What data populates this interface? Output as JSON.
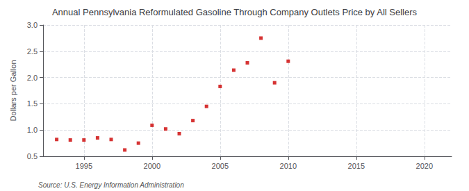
{
  "chart_data": {
    "type": "scatter",
    "title": "Annual Pennsylvania Reformulated Gasoline Through Company Outlets Price by All Sellers",
    "ylabel": "Dollars per Gallon",
    "annotations": [
      "Source: U.S. Energy Information Administration"
    ],
    "x": [
      1993,
      1994,
      1995,
      1996,
      1997,
      1998,
      1999,
      2000,
      2001,
      2002,
      2003,
      2004,
      2005,
      2006,
      2007,
      2008,
      2009,
      2010
    ],
    "values": [
      0.82,
      0.81,
      0.81,
      0.85,
      0.82,
      0.62,
      0.75,
      1.09,
      1.02,
      0.93,
      1.18,
      1.45,
      1.83,
      2.14,
      2.28,
      2.75,
      1.9,
      2.31
    ],
    "color": "#cc0000",
    "marker": "square",
    "xlim": [
      1992,
      2022
    ],
    "ylim": [
      0.5,
      3.0
    ],
    "xticks": [
      1995,
      2000,
      2005,
      2010,
      2015,
      2020
    ],
    "yticks": [
      0.5,
      {
        "value": 1,
        "label": "1.0"
      },
      1.5,
      {
        "value": 2,
        "label": "2.0"
      },
      2.5,
      {
        "value": 3,
        "label": "3.0"
      }
    ],
    "grid": true
  }
}
